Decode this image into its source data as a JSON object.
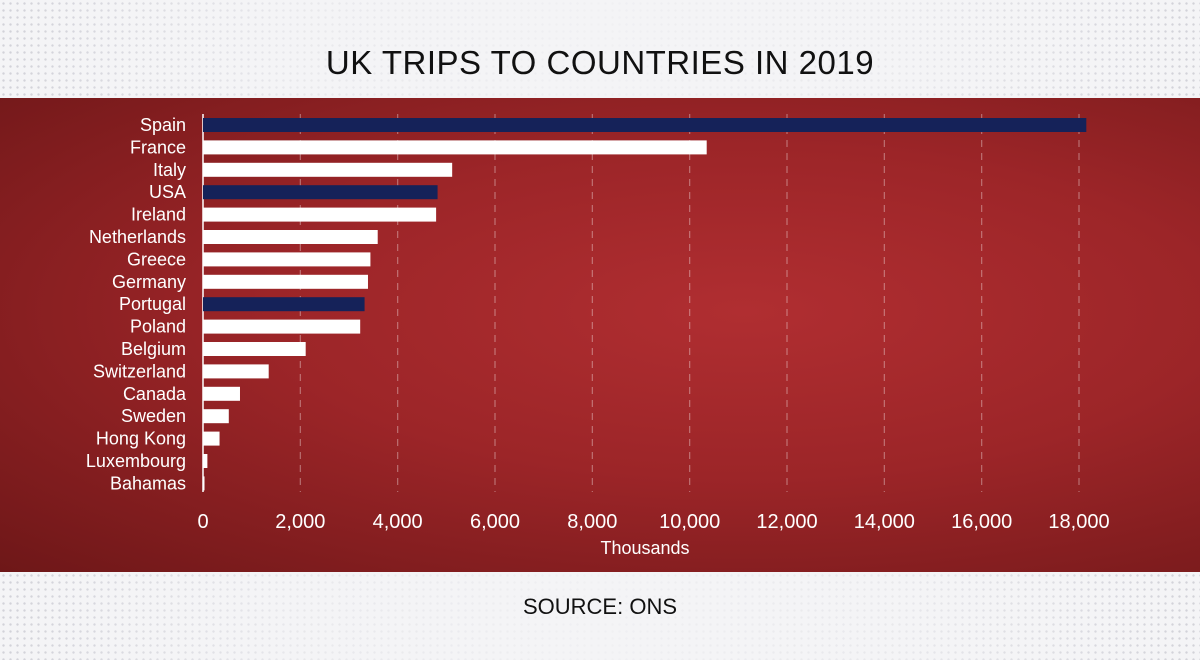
{
  "title": "UK TRIPS TO COUNTRIES IN 2019",
  "source": "SOURCE: ONS",
  "colors": {
    "highlight": "#152259",
    "default": "#ffffff",
    "panel": "#a3282b"
  },
  "chart_data": {
    "type": "bar",
    "orientation": "horizontal",
    "title": "UK TRIPS TO COUNTRIES IN 2019",
    "xlabel": "Thousands",
    "ylabel": "",
    "xlim": [
      0,
      18000
    ],
    "xticks": [
      0,
      2000,
      4000,
      6000,
      8000,
      10000,
      12000,
      14000,
      16000,
      18000
    ],
    "xtick_labels": [
      "0",
      "2,000",
      "4,000",
      "6,000",
      "8,000",
      "10,000",
      "12,000",
      "14,000",
      "16,000",
      "18,000"
    ],
    "grid": "vertical dashed",
    "categories": [
      "Spain",
      "France",
      "Italy",
      "USA",
      "Ireland",
      "Netherlands",
      "Greece",
      "Germany",
      "Portugal",
      "Poland",
      "Belgium",
      "Switzerland",
      "Canada",
      "Sweden",
      "Hong Kong",
      "Luxembourg",
      "Bahamas"
    ],
    "values": [
      18150,
      10350,
      5120,
      4820,
      4790,
      3590,
      3440,
      3390,
      3320,
      3230,
      2110,
      1350,
      760,
      530,
      340,
      90,
      30
    ],
    "highlighted": [
      "Spain",
      "USA",
      "Portugal"
    ]
  }
}
